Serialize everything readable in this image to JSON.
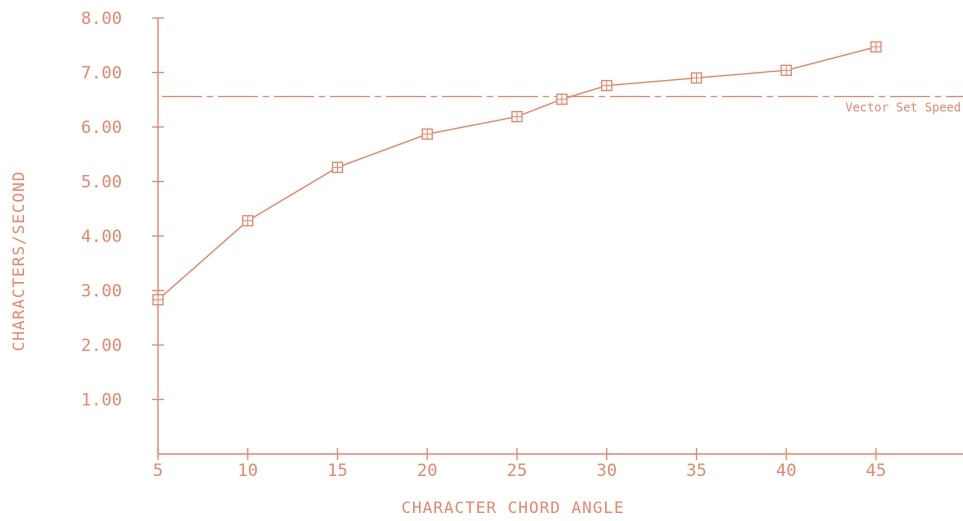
{
  "colors": {
    "ink": "#e8876a",
    "background": "#ffffff"
  },
  "chart_data": {
    "type": "line",
    "title": "",
    "xlabel": "CHARACTER CHORD ANGLE",
    "ylabel": "CHARACTERS/SECOND",
    "xlim": [
      5,
      50
    ],
    "ylim": [
      0,
      8
    ],
    "x_ticks": [
      5,
      10,
      15,
      20,
      25,
      30,
      35,
      40,
      45
    ],
    "x_tick_labels": [
      "5",
      "10",
      "15",
      "20",
      "25",
      "30",
      "35",
      "40",
      "45"
    ],
    "y_ticks": [
      1,
      2,
      3,
      4,
      5,
      6,
      7,
      8
    ],
    "y_tick_labels": [
      "1.00",
      "2.00",
      "3.00",
      "4.00",
      "5.00",
      "6.00",
      "7.00",
      "8.00"
    ],
    "grid": false,
    "marker": "square-with-cross",
    "series": [
      {
        "x": [
          5,
          10,
          15,
          20,
          25,
          27.5,
          30,
          35,
          40,
          45
        ],
        "y": [
          2.83,
          4.28,
          5.26,
          5.87,
          6.19,
          6.51,
          6.76,
          6.9,
          7.04,
          7.47
        ]
      }
    ],
    "reference_lines": [
      {
        "y": 6.56,
        "label": "Vector Set Speed",
        "style": "dash-dot"
      }
    ]
  }
}
